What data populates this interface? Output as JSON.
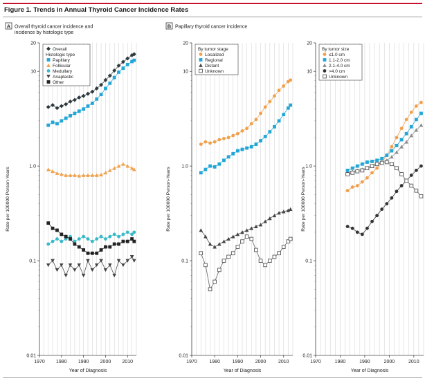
{
  "figure_title": "Figure 1. Trends in Annual Thyroid Cancer Incidence Rates",
  "colors": {
    "title_rule": "#c8102e",
    "overall": "#2f3a3f",
    "papillary": "#23a6d6",
    "follicular": "#f0a04b",
    "medullary": "#38b9c8",
    "anaplastic": "#444444",
    "other": "#222222",
    "localized": "#f0a04b",
    "regional": "#23a6d6",
    "distant": "#444444",
    "unknown": "#555555",
    "size_le1": "#f0a04b",
    "size_1_2": "#23a6d6",
    "size_2_4": "#8a8a8a",
    "size_gt4": "#333333",
    "size_unknown": "#555555"
  },
  "shared": {
    "y_axis_label": "Rate per 100000 Person-Years",
    "x_axis_label": "Year of Diagnosis"
  },
  "chart_data": [
    {
      "type": "scatter",
      "panel_letter": "A",
      "title": "Overall thyroid cancer incidence and incidence by histologic type",
      "scale": "log",
      "xlim": [
        1970,
        2014
      ],
      "ylim": [
        0.01,
        20
      ],
      "x_ticks": [
        1970,
        1980,
        1990,
        2000,
        2010
      ],
      "y_ticks": [
        {
          "v": 0.01,
          "l": "0.01"
        },
        {
          "v": 0.1,
          "l": "0.1"
        },
        {
          "v": 1,
          "l": "1.0"
        },
        {
          "v": 10,
          "l": "10"
        },
        {
          "v": 20,
          "l": "20"
        }
      ],
      "legend_position": "top-left",
      "legend": [
        {
          "label": "Overall",
          "marker": "diamond",
          "color": "#2f3a3f"
        },
        {
          "label": "Histologic type",
          "heading": true
        },
        {
          "label": "Papillary",
          "marker": "square",
          "color": "#23a6d6"
        },
        {
          "label": "Follicular",
          "marker": "triangle-up",
          "color": "#f0a04b"
        },
        {
          "label": "Medullary",
          "marker": "circle",
          "color": "#38b9c8"
        },
        {
          "label": "Anaplastic",
          "marker": "triangle-down",
          "color": "#444444"
        },
        {
          "label": "Other",
          "marker": "square",
          "color": "#222222"
        }
      ],
      "series": [
        {
          "name": "Overall",
          "marker": "diamond",
          "color": "#2f3a3f",
          "x": [
            1974,
            1976,
            1978,
            1980,
            1982,
            1984,
            1986,
            1988,
            1990,
            1992,
            1994,
            1996,
            1998,
            2000,
            2002,
            2004,
            2006,
            2008,
            2010,
            2012,
            2013
          ],
          "y": [
            4.2,
            4.4,
            4.1,
            4.3,
            4.5,
            4.8,
            5.0,
            5.3,
            5.5,
            5.8,
            6.1,
            6.6,
            7.2,
            8.1,
            9.0,
            10.2,
            11.5,
            12.6,
            13.7,
            14.8,
            15.2
          ]
        },
        {
          "name": "Papillary",
          "marker": "square",
          "color": "#23a6d6",
          "x": [
            1974,
            1976,
            1978,
            1980,
            1982,
            1984,
            1986,
            1988,
            1990,
            1992,
            1994,
            1996,
            1998,
            2000,
            2002,
            2004,
            2006,
            2008,
            2010,
            2012,
            2013
          ],
          "y": [
            2.7,
            2.9,
            2.8,
            3.0,
            3.2,
            3.4,
            3.6,
            3.8,
            4.0,
            4.3,
            4.6,
            5.1,
            5.7,
            6.6,
            7.5,
            8.6,
            9.8,
            10.8,
            11.8,
            12.7,
            13.1
          ]
        },
        {
          "name": "Follicular",
          "marker": "triangle-up",
          "color": "#f0a04b",
          "x": [
            1974,
            1976,
            1978,
            1980,
            1982,
            1984,
            1986,
            1988,
            1990,
            1992,
            1994,
            1996,
            1998,
            2000,
            2002,
            2004,
            2006,
            2008,
            2010,
            2012,
            2013
          ],
          "y": [
            0.92,
            0.88,
            0.84,
            0.82,
            0.8,
            0.8,
            0.8,
            0.79,
            0.8,
            0.8,
            0.8,
            0.8,
            0.81,
            0.85,
            0.9,
            0.95,
            1.0,
            1.05,
            1.0,
            0.95,
            0.92
          ]
        },
        {
          "name": "Medullary",
          "marker": "circle",
          "color": "#38b9c8",
          "x": [
            1974,
            1976,
            1978,
            1980,
            1982,
            1984,
            1986,
            1988,
            1990,
            1992,
            1994,
            1996,
            1998,
            2000,
            2002,
            2004,
            2006,
            2008,
            2010,
            2012,
            2013
          ],
          "y": [
            0.15,
            0.16,
            0.17,
            0.16,
            0.17,
            0.18,
            0.16,
            0.17,
            0.18,
            0.17,
            0.16,
            0.17,
            0.18,
            0.17,
            0.18,
            0.19,
            0.18,
            0.19,
            0.2,
            0.19,
            0.2
          ]
        },
        {
          "name": "Anaplastic",
          "marker": "triangle-down",
          "color": "#444444",
          "x": [
            1974,
            1976,
            1978,
            1980,
            1982,
            1984,
            1986,
            1988,
            1990,
            1992,
            1994,
            1996,
            1998,
            2000,
            2002,
            2004,
            2006,
            2008,
            2010,
            2012,
            2013
          ],
          "y": [
            0.09,
            0.1,
            0.08,
            0.09,
            0.07,
            0.09,
            0.08,
            0.09,
            0.07,
            0.1,
            0.08,
            0.09,
            0.1,
            0.08,
            0.09,
            0.07,
            0.1,
            0.09,
            0.1,
            0.11,
            0.1
          ]
        },
        {
          "name": "Other",
          "marker": "square",
          "color": "#222222",
          "x": [
            1974,
            1976,
            1978,
            1980,
            1982,
            1984,
            1986,
            1988,
            1990,
            1992,
            1994,
            1996,
            1998,
            2000,
            2002,
            2004,
            2006,
            2008,
            2010,
            2012,
            2013
          ],
          "y": [
            0.25,
            0.22,
            0.21,
            0.19,
            0.18,
            0.17,
            0.15,
            0.14,
            0.13,
            0.12,
            0.12,
            0.12,
            0.13,
            0.14,
            0.14,
            0.15,
            0.15,
            0.16,
            0.16,
            0.17,
            0.16
          ]
        }
      ]
    },
    {
      "type": "scatter",
      "panel_letter": "B",
      "title": "Papillary thyroid cancer incidence",
      "scale": "log",
      "xlim": [
        1970,
        2014
      ],
      "ylim": [
        0.01,
        20
      ],
      "x_ticks": [
        1970,
        1980,
        1990,
        2000,
        2010
      ],
      "y_ticks": [
        {
          "v": 0.01,
          "l": "0.01"
        },
        {
          "v": 0.1,
          "l": "0.1"
        },
        {
          "v": 1,
          "l": "1.0"
        },
        {
          "v": 10,
          "l": "10"
        },
        {
          "v": 20,
          "l": "20"
        }
      ],
      "legend_position": "top-left",
      "legend": [
        {
          "label": "By tumor stage",
          "heading": true
        },
        {
          "label": "Localized",
          "marker": "circle",
          "color": "#f0a04b"
        },
        {
          "label": "Regional",
          "marker": "square",
          "color": "#23a6d6"
        },
        {
          "label": "Distant",
          "marker": "triangle-up",
          "color": "#444444"
        },
        {
          "label": "Unknown",
          "marker": "square-open",
          "color": "#555555"
        }
      ],
      "series": [
        {
          "name": "Localized",
          "marker": "circle",
          "color": "#f0a04b",
          "x": [
            1974,
            1976,
            1978,
            1980,
            1982,
            1984,
            1986,
            1988,
            1990,
            1992,
            1994,
            1996,
            1998,
            2000,
            2002,
            2004,
            2006,
            2008,
            2010,
            2012,
            2013
          ],
          "y": [
            1.7,
            1.8,
            1.75,
            1.8,
            1.9,
            1.95,
            2.0,
            2.1,
            2.2,
            2.35,
            2.5,
            2.8,
            3.1,
            3.6,
            4.2,
            4.8,
            5.5,
            6.3,
            7.0,
            7.8,
            8.1
          ]
        },
        {
          "name": "Regional",
          "marker": "square",
          "color": "#23a6d6",
          "x": [
            1974,
            1976,
            1978,
            1980,
            1982,
            1984,
            1986,
            1988,
            1990,
            1992,
            1994,
            1996,
            1998,
            2000,
            2002,
            2004,
            2006,
            2008,
            2010,
            2012,
            2013
          ],
          "y": [
            0.85,
            0.92,
            1.0,
            0.98,
            1.05,
            1.15,
            1.25,
            1.35,
            1.45,
            1.5,
            1.55,
            1.6,
            1.7,
            1.85,
            2.05,
            2.3,
            2.6,
            3.0,
            3.5,
            4.1,
            4.4
          ]
        },
        {
          "name": "Distant",
          "marker": "triangle-up",
          "color": "#444444",
          "x": [
            1974,
            1976,
            1978,
            1980,
            1982,
            1984,
            1986,
            1988,
            1990,
            1992,
            1994,
            1996,
            1998,
            2000,
            2002,
            2004,
            2006,
            2008,
            2010,
            2012,
            2013
          ],
          "y": [
            0.21,
            0.18,
            0.15,
            0.14,
            0.15,
            0.16,
            0.17,
            0.18,
            0.19,
            0.2,
            0.21,
            0.22,
            0.23,
            0.24,
            0.26,
            0.28,
            0.3,
            0.32,
            0.33,
            0.34,
            0.35
          ]
        },
        {
          "name": "Unknown",
          "marker": "square-open",
          "color": "#555555",
          "x": [
            1974,
            1976,
            1978,
            1980,
            1982,
            1984,
            1986,
            1988,
            1990,
            1992,
            1994,
            1996,
            1998,
            2000,
            2002,
            2004,
            2006,
            2008,
            2010,
            2012,
            2013
          ],
          "y": [
            0.12,
            0.09,
            0.05,
            0.06,
            0.08,
            0.1,
            0.11,
            0.12,
            0.14,
            0.16,
            0.18,
            0.17,
            0.13,
            0.1,
            0.09,
            0.1,
            0.11,
            0.12,
            0.14,
            0.16,
            0.17
          ]
        }
      ]
    },
    {
      "type": "scatter",
      "panel_letter": "",
      "title": "",
      "scale": "log",
      "xlim": [
        1970,
        2014
      ],
      "ylim": [
        0.01,
        20
      ],
      "x_ticks": [
        1970,
        1980,
        1990,
        2000,
        2010
      ],
      "y_ticks": [
        {
          "v": 0.01,
          "l": "0.01"
        },
        {
          "v": 0.1,
          "l": "0.1"
        },
        {
          "v": 1,
          "l": "1.0"
        },
        {
          "v": 10,
          "l": "10"
        },
        {
          "v": 20,
          "l": "20"
        }
      ],
      "legend_position": "top-left",
      "legend": [
        {
          "label": "By tumor size",
          "heading": true
        },
        {
          "label": "≤1.0 cm",
          "marker": "circle",
          "color": "#f0a04b"
        },
        {
          "label": "1.1-2.0 cm",
          "marker": "square",
          "color": "#23a6d6"
        },
        {
          "label": "2.1-4.0 cm",
          "marker": "triangle-up",
          "color": "#8a8a8a"
        },
        {
          "label": ">4.0 cm",
          "marker": "circle",
          "color": "#333333"
        },
        {
          "label": "Unknown",
          "marker": "square-open",
          "color": "#555555"
        }
      ],
      "series": [
        {
          "name": "≤1.0 cm",
          "marker": "circle",
          "color": "#f0a04b",
          "x": [
            1983,
            1985,
            1987,
            1989,
            1991,
            1993,
            1995,
            1997,
            1999,
            2001,
            2003,
            2005,
            2007,
            2009,
            2011,
            2013
          ],
          "y": [
            0.55,
            0.6,
            0.62,
            0.68,
            0.75,
            0.85,
            0.95,
            1.1,
            1.3,
            1.6,
            2.0,
            2.5,
            3.1,
            3.7,
            4.3,
            4.7
          ]
        },
        {
          "name": "1.1-2.0 cm",
          "marker": "square",
          "color": "#23a6d6",
          "x": [
            1983,
            1985,
            1987,
            1989,
            1991,
            1993,
            1995,
            1997,
            1999,
            2001,
            2003,
            2005,
            2007,
            2009,
            2011,
            2013
          ],
          "y": [
            0.9,
            0.95,
            1.0,
            1.05,
            1.1,
            1.12,
            1.15,
            1.2,
            1.3,
            1.45,
            1.65,
            1.9,
            2.2,
            2.6,
            3.1,
            3.6
          ]
        },
        {
          "name": "2.1-4.0 cm",
          "marker": "triangle-up",
          "color": "#8a8a8a",
          "x": [
            1983,
            1985,
            1987,
            1989,
            1991,
            1993,
            1995,
            1997,
            1999,
            2001,
            2003,
            2005,
            2007,
            2009,
            2011,
            2013
          ],
          "y": [
            0.85,
            0.88,
            0.9,
            0.92,
            0.95,
            1.0,
            1.05,
            1.1,
            1.15,
            1.25,
            1.4,
            1.6,
            1.8,
            2.1,
            2.4,
            2.7
          ]
        },
        {
          "name": ">4.0 cm",
          "marker": "circle",
          "color": "#333333",
          "x": [
            1983,
            1985,
            1987,
            1989,
            1991,
            1993,
            1995,
            1997,
            1999,
            2001,
            2003,
            2005,
            2007,
            2009,
            2011,
            2013
          ],
          "y": [
            0.23,
            0.22,
            0.2,
            0.19,
            0.22,
            0.26,
            0.3,
            0.35,
            0.4,
            0.46,
            0.54,
            0.62,
            0.7,
            0.8,
            0.9,
            1.0
          ]
        },
        {
          "name": "Unknown",
          "marker": "square-open",
          "color": "#555555",
          "x": [
            1983,
            1985,
            1987,
            1989,
            1991,
            1993,
            1995,
            1997,
            1999,
            2001,
            2003,
            2005,
            2007,
            2009,
            2011,
            2013
          ],
          "y": [
            0.82,
            0.85,
            0.88,
            0.9,
            0.95,
            1.0,
            1.05,
            1.08,
            1.1,
            1.05,
            0.95,
            0.82,
            0.7,
            0.62,
            0.55,
            0.48
          ]
        }
      ]
    }
  ]
}
